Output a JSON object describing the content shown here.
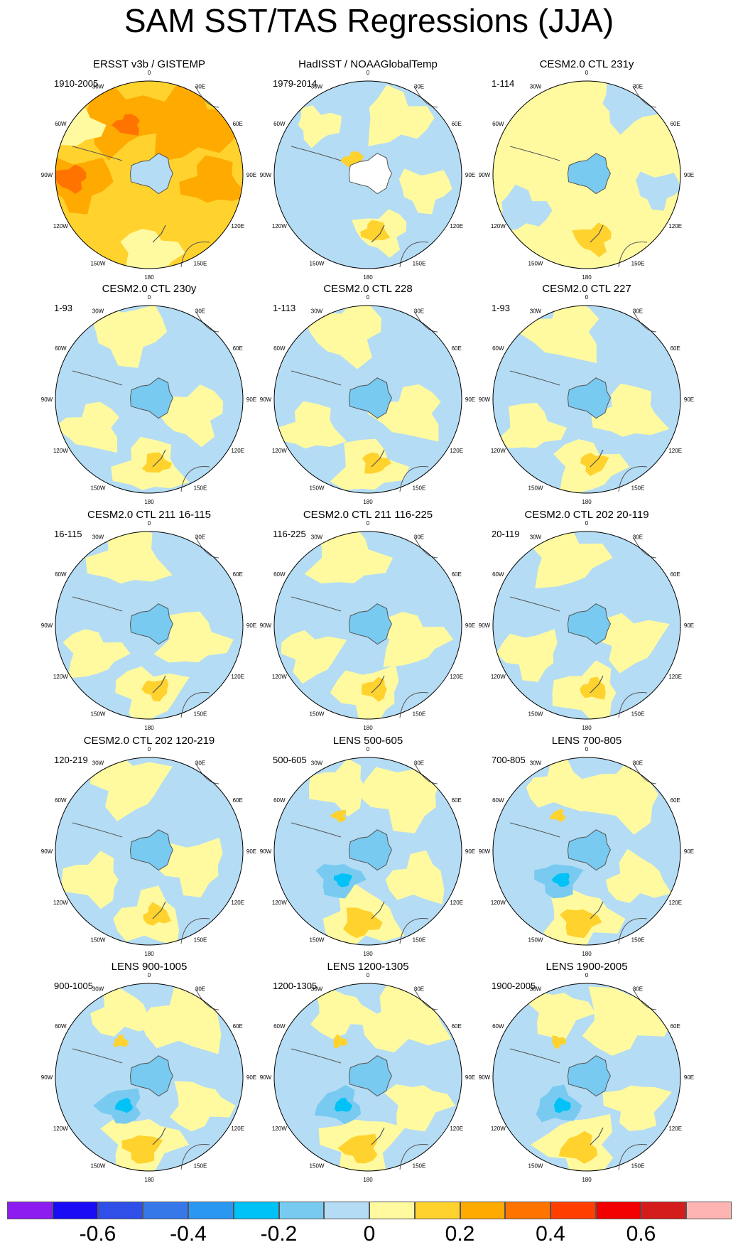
{
  "title": "SAM SST/TAS Regressions (JJA)",
  "lon_labels": [
    "0",
    "30E",
    "60E",
    "90E",
    "120E",
    "150E",
    "180",
    "150W",
    "120W",
    "90W",
    "60W",
    "30W"
  ],
  "colorbar": {
    "colors": [
      "#8c1cf0",
      "#1a0cf5",
      "#2f4fe8",
      "#3677ea",
      "#2a98f2",
      "#00c2f7",
      "#78caf0",
      "#b4dcf4",
      "#fffaa0",
      "#ffd22e",
      "#ffaa00",
      "#ff7400",
      "#ff3e00",
      "#f20000",
      "#d41c1c",
      "#ffb4b4"
    ],
    "labels": [
      "-0.6",
      "-0.4",
      "-0.2",
      "0",
      "0.2",
      "0.4",
      "0.6"
    ]
  },
  "panels": [
    {
      "title": "ERSST v3b / GISTEMP",
      "period": "1910-2005",
      "style": "obs1"
    },
    {
      "title": "HadISST / NOAAGlobalTemp",
      "period": "1979-2014",
      "style": "obs2"
    },
    {
      "title": "CESM2.0 CTL 231y",
      "period": "1-114",
      "style": "yellow"
    },
    {
      "title": "CESM2.0 CTL 230y",
      "period": "1-93",
      "style": "mixed"
    },
    {
      "title": "CESM2.0 CTL 228",
      "period": "1-113",
      "style": "mixed"
    },
    {
      "title": "CESM2.0 CTL 227",
      "period": "1-93",
      "style": "mixed"
    },
    {
      "title": "CESM2.0 CTL 211 16-115",
      "period": "16-115",
      "style": "mixed"
    },
    {
      "title": "CESM2.0 CTL 211 116-225",
      "period": "116-225",
      "style": "mixed"
    },
    {
      "title": "CESM2.0 CTL 202 20-119",
      "period": "20-119",
      "style": "mixed"
    },
    {
      "title": "CESM2.0 CTL 202 120-219",
      "period": "120-219",
      "style": "mixed"
    },
    {
      "title": "LENS 500-605",
      "period": "500-605",
      "style": "lens"
    },
    {
      "title": "LENS 700-805",
      "period": "700-805",
      "style": "lens"
    },
    {
      "title": "LENS 900-1005",
      "period": "900-1005",
      "style": "lens"
    },
    {
      "title": "LENS 1200-1305",
      "period": "1200-1305",
      "style": "lens"
    },
    {
      "title": "LENS 1900-2005",
      "period": "1900-2005",
      "style": "lens"
    }
  ]
}
